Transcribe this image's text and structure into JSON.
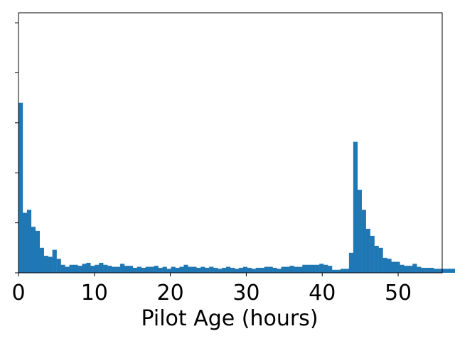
{
  "chart_data": {
    "type": "bar",
    "title": "",
    "xlabel": "Pilot Age (hours)",
    "ylabel": "",
    "xlim": [
      0,
      55.8
    ],
    "ylim": [
      0,
      260
    ],
    "x_ticks": [
      0,
      10,
      20,
      30,
      40,
      50
    ],
    "y_ticks": [
      0,
      50,
      100,
      150,
      200,
      250
    ],
    "y_tick_labels_visible": false,
    "grid": false,
    "bin_width": 0.558,
    "color": "#1f77b4",
    "values": [
      170,
      60,
      63,
      46,
      42,
      25,
      17,
      16,
      23,
      14,
      8,
      6,
      8,
      8,
      7,
      9,
      10,
      7,
      8,
      10,
      8,
      7,
      6,
      6,
      9,
      7,
      7,
      5,
      6,
      5,
      6,
      6,
      7,
      5,
      6,
      4,
      6,
      5,
      6,
      8,
      6,
      6,
      5,
      6,
      5,
      6,
      5,
      4,
      5,
      6,
      5,
      4,
      5,
      6,
      5,
      4,
      5,
      5,
      6,
      6,
      5,
      4,
      6,
      6,
      7,
      6,
      6,
      8,
      8,
      8,
      8,
      9,
      8,
      7,
      3,
      3,
      4,
      4,
      20,
      131,
      83,
      63,
      44,
      37,
      27,
      25,
      15,
      14,
      11,
      11,
      8,
      7,
      7,
      9,
      6,
      5,
      5,
      5,
      4,
      4,
      4,
      4,
      4,
      5,
      4,
      3,
      3,
      3,
      2
    ]
  }
}
